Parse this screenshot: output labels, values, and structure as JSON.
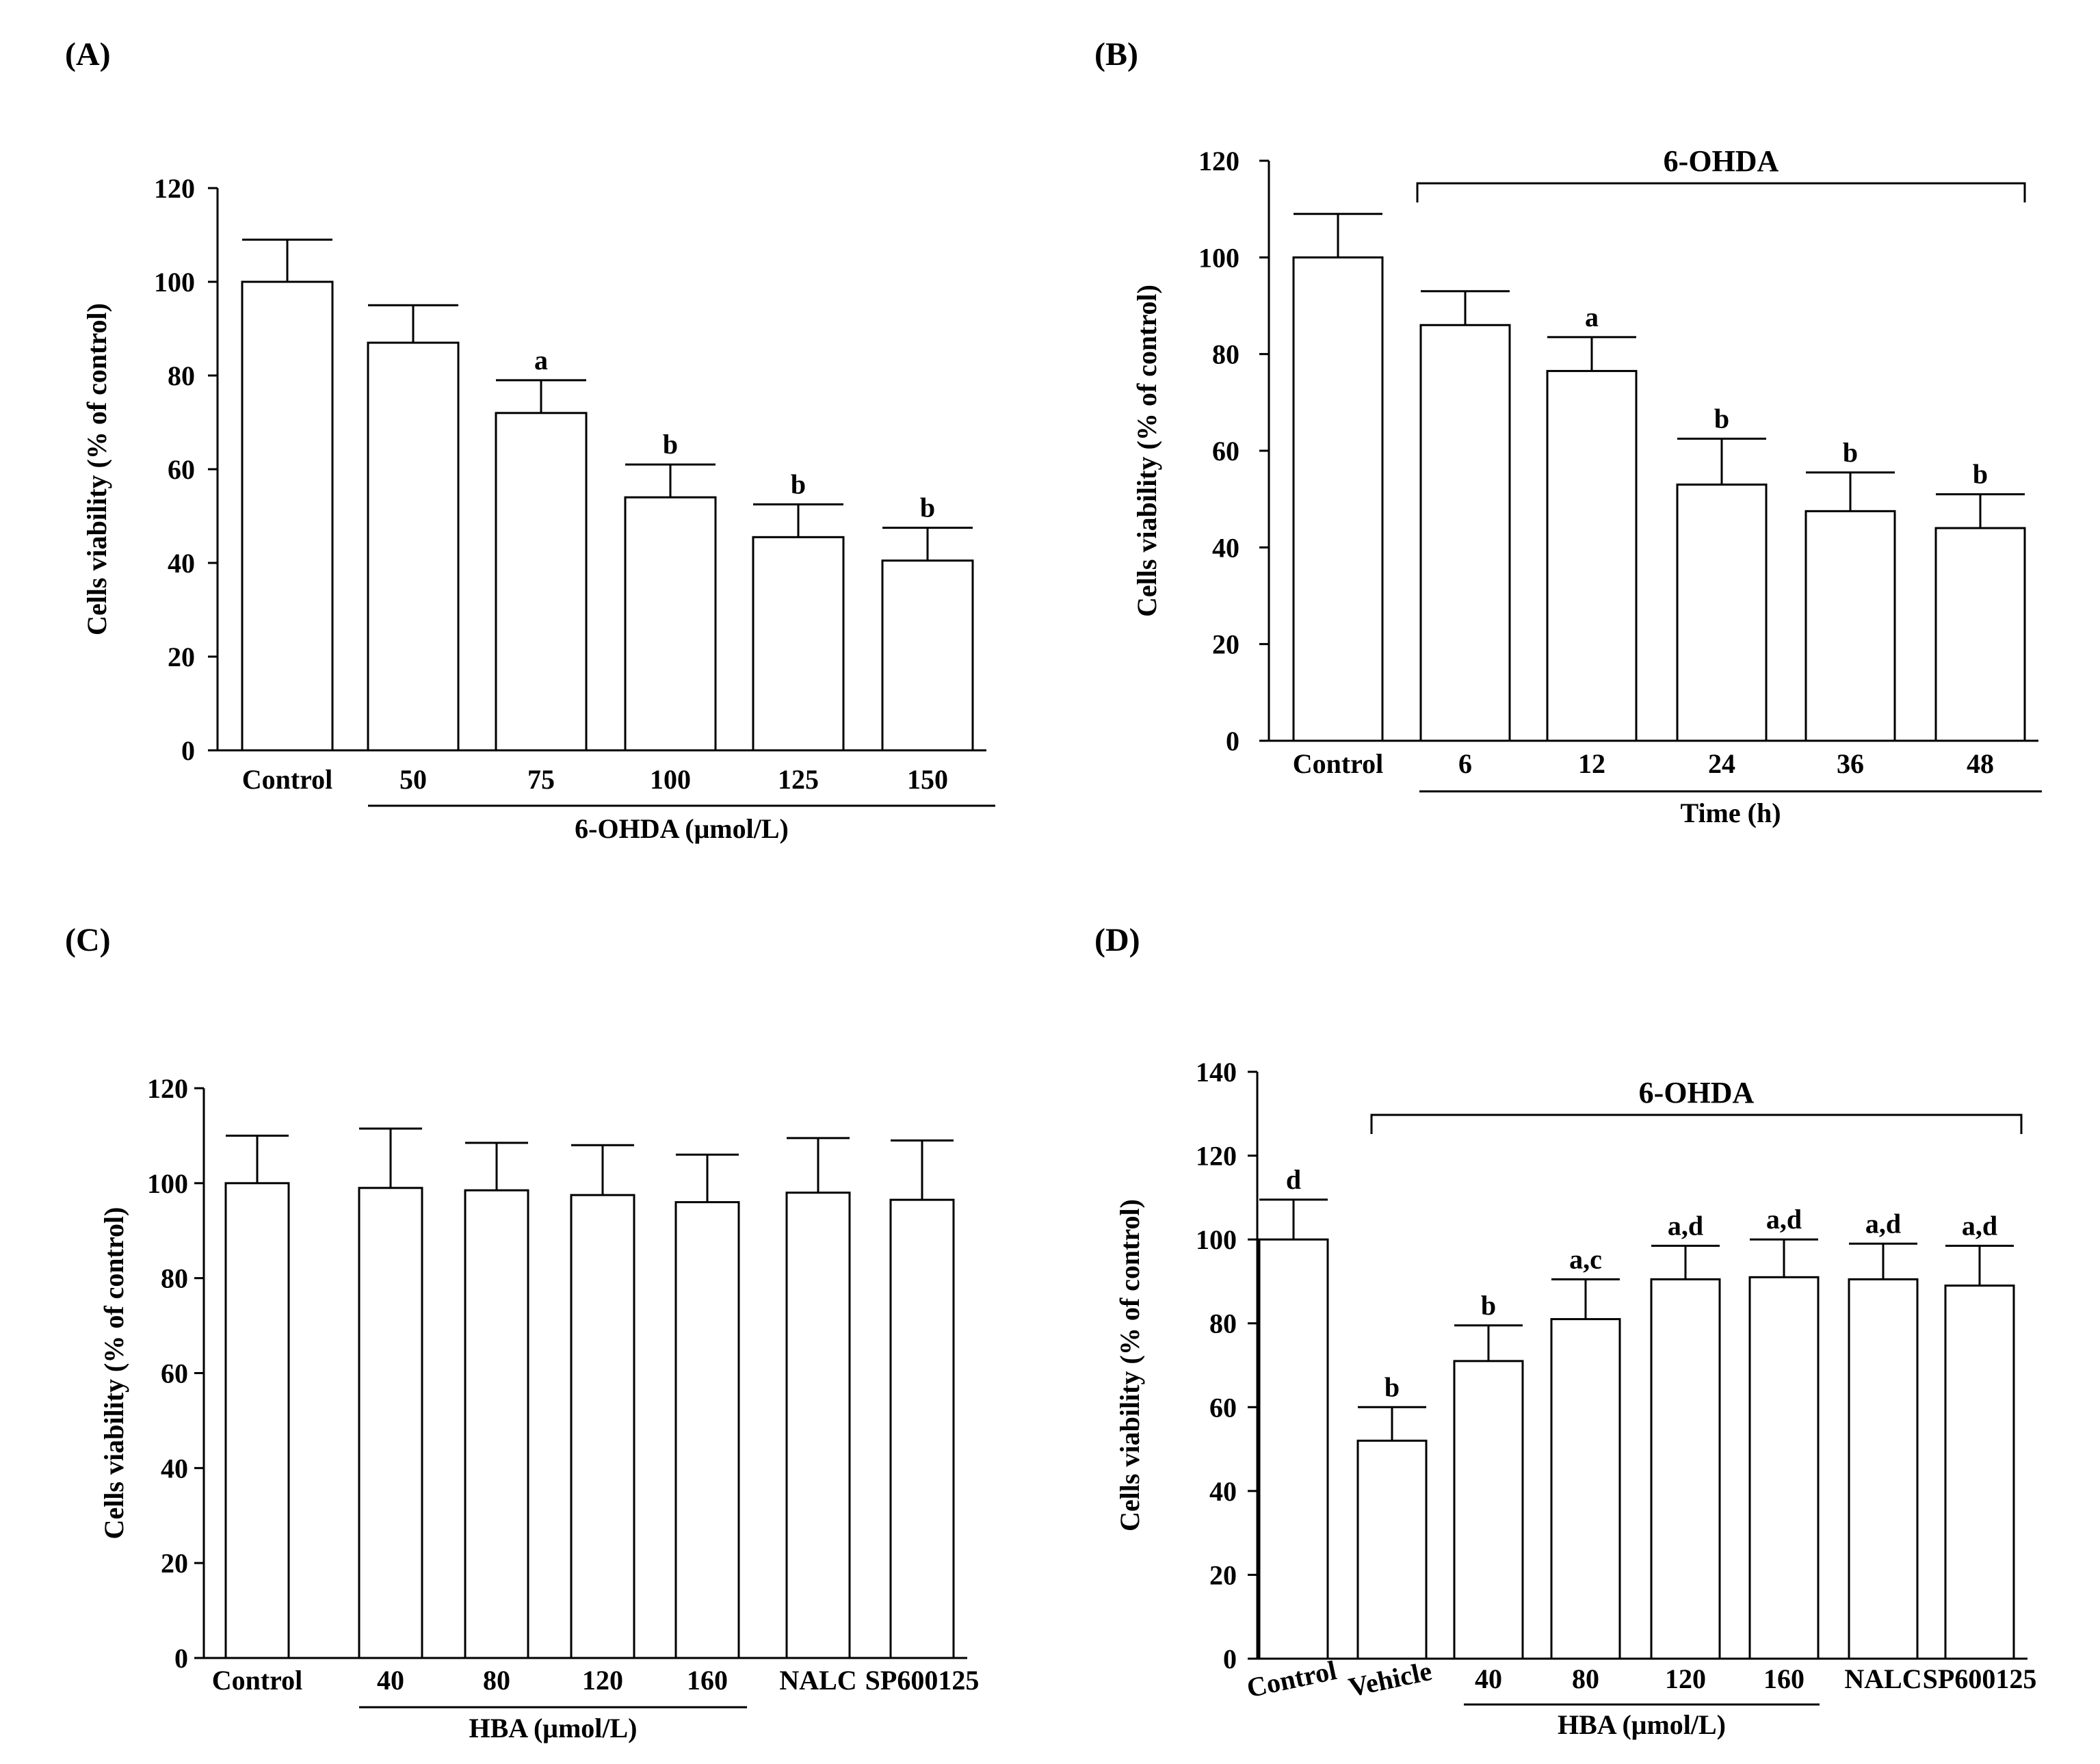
{
  "chart_data": [
    {
      "panel": "(A)",
      "type": "bar",
      "ylabel": "Cells viability (% of control)",
      "ylim": [
        0,
        120
      ],
      "ytick_step": 20,
      "yticks": [
        "0",
        "20",
        "40",
        "60",
        "80",
        "100",
        "120"
      ],
      "categories": [
        "Control",
        "50",
        "75",
        "100",
        "125",
        "150"
      ],
      "values": [
        100,
        87,
        72,
        54,
        45.5,
        40.5
      ],
      "errors": [
        9,
        8,
        7,
        7,
        7,
        7
      ],
      "significance": [
        "",
        "",
        "a",
        "b",
        "b",
        "b"
      ],
      "group_label": "6-OHDA (μmol/L)",
      "group_span": [
        1,
        5
      ],
      "top_bracket": ""
    },
    {
      "panel": "(B)",
      "type": "bar",
      "ylabel": "Cells viability (% of control)",
      "ylim": [
        0,
        120
      ],
      "ytick_step": 20,
      "yticks": [
        "0",
        "20",
        "40",
        "60",
        "80",
        "100",
        "120"
      ],
      "categories": [
        "Control",
        "6",
        "12",
        "24",
        "36",
        "48"
      ],
      "values": [
        100,
        86,
        76.5,
        53,
        47.5,
        44
      ],
      "errors": [
        9,
        7,
        7,
        9.5,
        8,
        7
      ],
      "significance": [
        "",
        "",
        "a",
        "b",
        "b",
        "b"
      ],
      "group_label": "Time (h)",
      "group_span": [
        1,
        5
      ],
      "top_bracket": "6-OHDA",
      "top_bracket_span": [
        1,
        5
      ]
    },
    {
      "panel": "(C)",
      "type": "bar",
      "ylabel": "Cells viability (% of control)",
      "ylim": [
        0,
        120
      ],
      "ytick_step": 20,
      "yticks": [
        "0",
        "20",
        "40",
        "60",
        "80",
        "100",
        "120"
      ],
      "categories": [
        "Control",
        "40",
        "80",
        "120",
        "160",
        "NALC",
        "SP600125"
      ],
      "values": [
        100,
        99,
        98.5,
        97.5,
        96,
        98,
        96.5
      ],
      "errors": [
        10,
        12.5,
        10,
        10.5,
        10,
        11.5,
        12.5
      ],
      "significance": [
        "",
        "",
        "",
        "",
        "",
        "",
        ""
      ],
      "group_label": "HBA (μmol/L)",
      "group_span": [
        1,
        4
      ],
      "top_bracket": ""
    },
    {
      "panel": "(D)",
      "type": "bar",
      "ylabel": "Cells viability (% of control)",
      "ylim": [
        0,
        140
      ],
      "ytick_step": 20,
      "yticks": [
        "0",
        "20",
        "40",
        "60",
        "80",
        "100",
        "120",
        "140"
      ],
      "categories": [
        "Control",
        "Vehicle",
        "40",
        "80",
        "120",
        "160",
        "NALC",
        "SP600125"
      ],
      "values": [
        100,
        52,
        71,
        81,
        90.5,
        91,
        90.5,
        89
      ],
      "errors": [
        9.5,
        8,
        8.5,
        9.5,
        8,
        9,
        8.5,
        9.5
      ],
      "significance": [
        "d",
        "b",
        "b",
        "a,c",
        "a,d",
        "a,d",
        "a,d",
        "a,d"
      ],
      "group_label": "HBA (μmol/L)",
      "group_span": [
        2,
        5
      ],
      "top_bracket": "6-OHDA",
      "top_bracket_span": [
        1,
        7
      ]
    }
  ]
}
